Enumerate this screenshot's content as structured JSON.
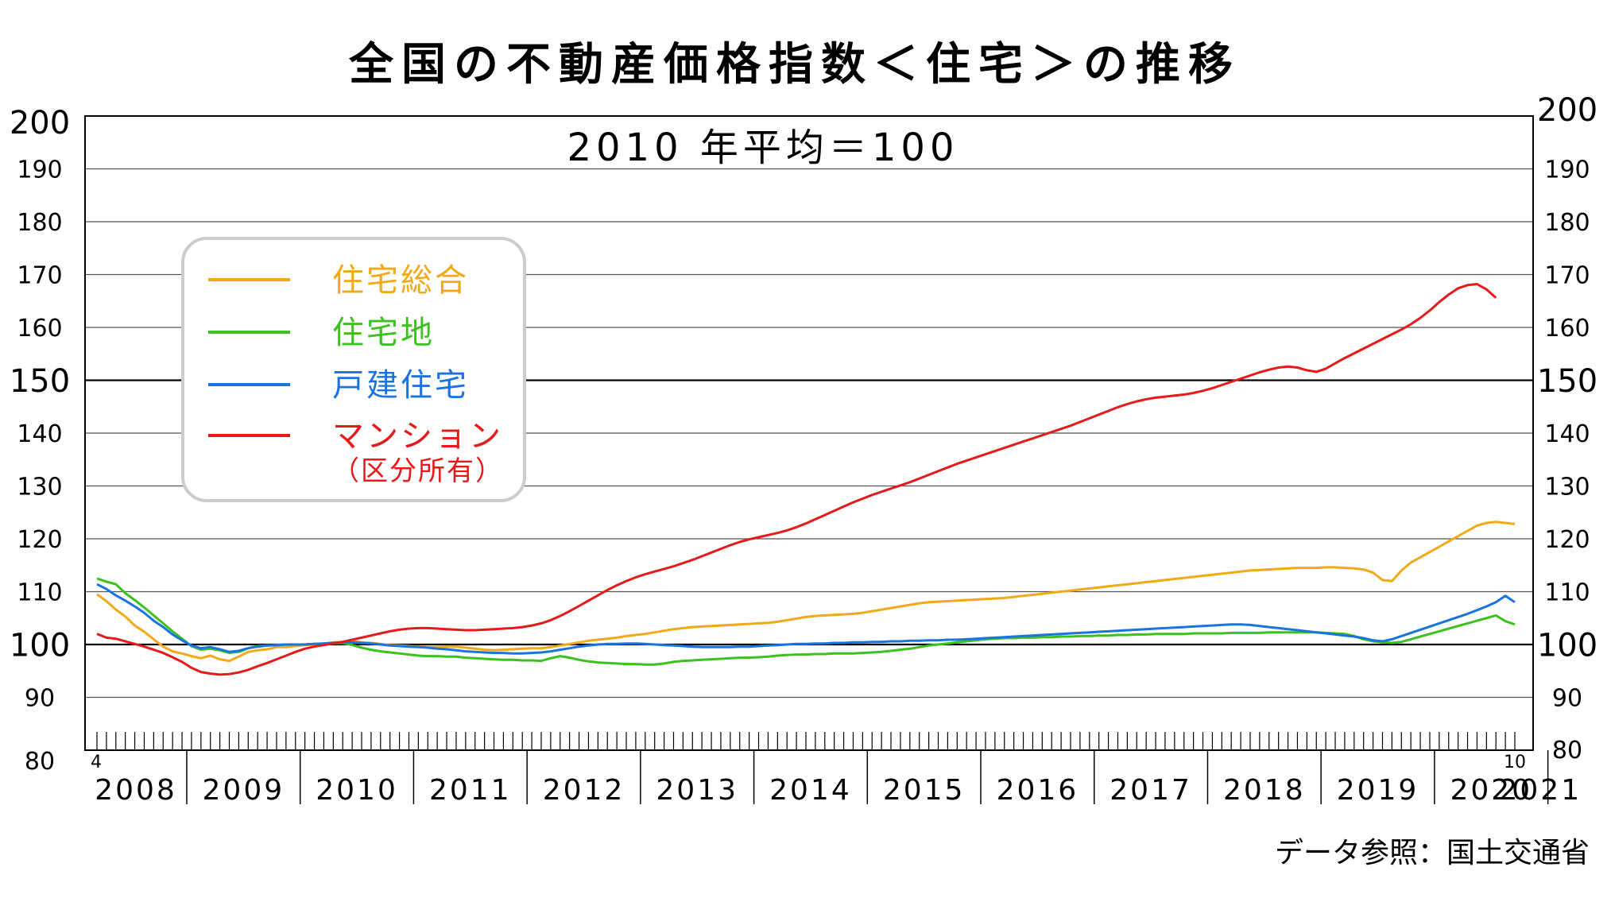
{
  "chart_data": {
    "type": "line",
    "title": "全国の不動産価格指数＜住宅＞の推移",
    "subtitle": "2010 年平均＝100",
    "source": "データ参照：国土交通省",
    "ylim": [
      80,
      200
    ],
    "yticks": [
      80,
      90,
      100,
      110,
      120,
      130,
      140,
      150,
      160,
      170,
      180,
      190,
      200
    ],
    "years": [
      "2008",
      "2009",
      "2010",
      "2011",
      "2012",
      "2013",
      "2014",
      "2015",
      "2016",
      "2017",
      "2018",
      "2019",
      "2020",
      "2021"
    ],
    "start_month_label": "4",
    "end_month_label": "10",
    "legend_position": "top-left",
    "grid": true,
    "series": [
      {
        "name": "住宅総合",
        "color": "#f2a918",
        "values": [
          109.5,
          108.2,
          106.6,
          105.3,
          103.6,
          102.4,
          101.0,
          99.6,
          98.7,
          98.3,
          97.8,
          97.4,
          97.9,
          97.2,
          96.9,
          97.7,
          98.6,
          98.9,
          99.1,
          99.5,
          99.5,
          99.7,
          99.9,
          100.0,
          100.2,
          100.4,
          100.5,
          100.6,
          100.4,
          100.3,
          100.1,
          99.9,
          99.8,
          99.7,
          99.6,
          99.5,
          99.5,
          99.6,
          99.6,
          99.4,
          99.2,
          99.0,
          98.9,
          99.0,
          99.1,
          99.2,
          99.3,
          99.3,
          99.5,
          99.8,
          100.1,
          100.4,
          100.7,
          100.9,
          101.1,
          101.3,
          101.6,
          101.8,
          102.0,
          102.3,
          102.6,
          102.9,
          103.1,
          103.3,
          103.4,
          103.5,
          103.6,
          103.7,
          103.8,
          103.9,
          104.0,
          104.1,
          104.3,
          104.6,
          104.9,
          105.2,
          105.4,
          105.5,
          105.6,
          105.7,
          105.8,
          106.0,
          106.3,
          106.6,
          106.9,
          107.2,
          107.5,
          107.8,
          108.0,
          108.1,
          108.2,
          108.3,
          108.4,
          108.5,
          108.6,
          108.7,
          108.8,
          109.0,
          109.2,
          109.4,
          109.6,
          109.8,
          110.0,
          110.2,
          110.4,
          110.6,
          110.8,
          111.0,
          111.2,
          111.4,
          111.6,
          111.8,
          112.0,
          112.2,
          112.4,
          112.6,
          112.8,
          113.0,
          113.2,
          113.4,
          113.6,
          113.8,
          114.0,
          114.1,
          114.2,
          114.3,
          114.4,
          114.5,
          114.5,
          114.5,
          114.6,
          114.6,
          114.5,
          114.4,
          114.2,
          113.6,
          112.2,
          112.0,
          114.0,
          115.5,
          116.5,
          117.5,
          118.5,
          119.5,
          120.5,
          121.5,
          122.5,
          123.0,
          123.2,
          123.0,
          122.8
        ]
      },
      {
        "name": "住宅地",
        "color": "#3cc21e",
        "values": [
          112.5,
          111.9,
          111.4,
          109.7,
          108.4,
          107.0,
          105.5,
          104.0,
          102.5,
          101.1,
          99.7,
          99.0,
          99.2,
          98.9,
          98.4,
          98.6,
          99.3,
          99.7,
          99.8,
          99.9,
          100.0,
          100.0,
          100.0,
          100.1,
          100.2,
          100.2,
          100.3,
          99.9,
          99.4,
          99.0,
          98.7,
          98.5,
          98.3,
          98.1,
          97.9,
          97.8,
          97.8,
          97.7,
          97.7,
          97.5,
          97.4,
          97.3,
          97.2,
          97.1,
          97.1,
          97.0,
          97.0,
          96.9,
          97.4,
          97.8,
          97.5,
          97.1,
          96.8,
          96.6,
          96.5,
          96.4,
          96.3,
          96.3,
          96.2,
          96.2,
          96.4,
          96.7,
          96.9,
          97.0,
          97.1,
          97.2,
          97.3,
          97.4,
          97.5,
          97.5,
          97.6,
          97.7,
          97.9,
          98.0,
          98.1,
          98.1,
          98.2,
          98.2,
          98.3,
          98.3,
          98.3,
          98.4,
          98.5,
          98.6,
          98.8,
          99.0,
          99.2,
          99.5,
          99.8,
          100.0,
          100.2,
          100.4,
          100.6,
          100.8,
          101.0,
          101.1,
          101.2,
          101.2,
          101.3,
          101.3,
          101.4,
          101.4,
          101.5,
          101.5,
          101.6,
          101.6,
          101.7,
          101.7,
          101.8,
          101.8,
          101.9,
          101.9,
          102.0,
          102.0,
          102.0,
          102.0,
          102.1,
          102.1,
          102.1,
          102.1,
          102.2,
          102.2,
          102.2,
          102.2,
          102.3,
          102.3,
          102.3,
          102.3,
          102.3,
          102.3,
          102.2,
          102.1,
          102.0,
          101.6,
          101.0,
          100.6,
          100.4,
          100.3,
          100.5,
          101.0,
          101.5,
          102.0,
          102.5,
          103.0,
          103.5,
          104.0,
          104.5,
          105.0,
          105.5,
          104.4,
          103.8
        ]
      },
      {
        "name": "戸建住宅",
        "color": "#1a74e0",
        "values": [
          111.4,
          110.5,
          109.3,
          108.3,
          107.2,
          106.0,
          104.5,
          103.3,
          101.9,
          100.8,
          99.8,
          99.3,
          99.5,
          99.1,
          98.6,
          98.8,
          99.3,
          99.6,
          99.8,
          99.9,
          100.0,
          100.0,
          100.0,
          100.1,
          100.2,
          100.3,
          100.4,
          100.4,
          100.3,
          100.2,
          100.0,
          99.8,
          99.7,
          99.6,
          99.5,
          99.4,
          99.2,
          99.1,
          98.9,
          98.7,
          98.6,
          98.5,
          98.4,
          98.4,
          98.3,
          98.3,
          98.4,
          98.5,
          98.7,
          99.0,
          99.3,
          99.6,
          99.8,
          100.0,
          100.1,
          100.1,
          100.2,
          100.2,
          100.1,
          100.0,
          99.9,
          99.8,
          99.7,
          99.6,
          99.5,
          99.5,
          99.5,
          99.5,
          99.6,
          99.6,
          99.7,
          99.8,
          99.9,
          100.0,
          100.1,
          100.1,
          100.2,
          100.2,
          100.3,
          100.3,
          100.4,
          100.4,
          100.5,
          100.5,
          100.6,
          100.6,
          100.7,
          100.7,
          100.8,
          100.8,
          100.9,
          100.9,
          101.0,
          101.1,
          101.2,
          101.3,
          101.4,
          101.5,
          101.6,
          101.7,
          101.8,
          101.9,
          102.0,
          102.1,
          102.2,
          102.3,
          102.4,
          102.5,
          102.6,
          102.7,
          102.8,
          102.9,
          103.0,
          103.1,
          103.2,
          103.3,
          103.4,
          103.5,
          103.6,
          103.7,
          103.8,
          103.8,
          103.7,
          103.5,
          103.3,
          103.1,
          102.9,
          102.7,
          102.5,
          102.3,
          102.1,
          101.9,
          101.7,
          101.5,
          101.2,
          100.8,
          100.6,
          101.0,
          101.6,
          102.2,
          102.8,
          103.4,
          104.0,
          104.6,
          105.2,
          105.8,
          106.5,
          107.2,
          108.0,
          109.2,
          108.0
        ]
      },
      {
        "name": "マンション（区分所有）",
        "color": "#e51b1b",
        "values": [
          102.0,
          101.3,
          101.1,
          100.6,
          100.1,
          99.6,
          99.0,
          98.4,
          97.6,
          96.7,
          95.6,
          94.8,
          94.5,
          94.3,
          94.4,
          94.7,
          95.2,
          95.9,
          96.5,
          97.2,
          97.9,
          98.6,
          99.2,
          99.6,
          99.9,
          100.2,
          100.5,
          100.9,
          101.3,
          101.7,
          102.1,
          102.5,
          102.8,
          103.0,
          103.1,
          103.1,
          103.0,
          102.9,
          102.8,
          102.7,
          102.7,
          102.8,
          102.9,
          103.0,
          103.1,
          103.3,
          103.6,
          104.0,
          104.6,
          105.4,
          106.3,
          107.3,
          108.3,
          109.3,
          110.3,
          111.2,
          112.0,
          112.7,
          113.3,
          113.8,
          114.3,
          114.8,
          115.4,
          116.0,
          116.7,
          117.4,
          118.1,
          118.8,
          119.4,
          119.9,
          120.3,
          120.7,
          121.1,
          121.6,
          122.2,
          122.9,
          123.7,
          124.5,
          125.3,
          126.1,
          126.9,
          127.6,
          128.3,
          128.9,
          129.5,
          130.1,
          130.7,
          131.4,
          132.1,
          132.8,
          133.5,
          134.2,
          134.8,
          135.4,
          136.0,
          136.6,
          137.2,
          137.8,
          138.4,
          139.0,
          139.6,
          140.2,
          140.8,
          141.4,
          142.1,
          142.8,
          143.5,
          144.2,
          144.9,
          145.5,
          146.0,
          146.4,
          146.7,
          146.9,
          147.1,
          147.3,
          147.6,
          148.0,
          148.5,
          149.1,
          149.7,
          150.3,
          150.9,
          151.5,
          152.0,
          152.4,
          152.6,
          152.4,
          151.9,
          151.6,
          152.2,
          153.2,
          154.2,
          155.1,
          156.0,
          156.9,
          157.8,
          158.7,
          159.6,
          160.6,
          161.8,
          163.2,
          164.8,
          166.2,
          167.4,
          168.0,
          168.2,
          167.2,
          165.6
        ]
      }
    ]
  }
}
